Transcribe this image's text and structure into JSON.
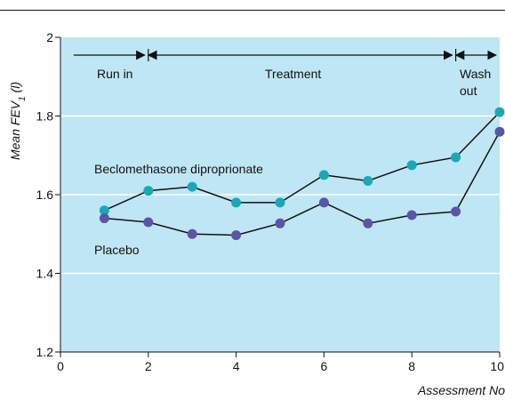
{
  "chart_data": {
    "type": "line",
    "xlabel": "Assessment No",
    "ylabel_main": "Mean FEV",
    "ylabel_sub": "1",
    "ylabel_unit": "(l)",
    "xlim": [
      0,
      10
    ],
    "ylim": [
      1.2,
      2.0
    ],
    "x_ticks": [
      "0",
      "2",
      "4",
      "6",
      "8",
      "10"
    ],
    "y_ticks": [
      "1.2",
      "1.4",
      "1.6",
      "1.8",
      "2"
    ],
    "grid": "horizontal",
    "background_color": "#bfe6f4",
    "series": [
      {
        "name": "Beclomethasone diproprionate",
        "color": "#1aa8b8",
        "x": [
          1,
          2,
          3,
          4,
          5,
          6,
          7,
          8,
          9,
          10
        ],
        "values": [
          1.56,
          1.61,
          1.62,
          1.58,
          1.58,
          1.65,
          1.635,
          1.675,
          1.695,
          1.81
        ]
      },
      {
        "name": "Placebo",
        "color": "#5a55a8",
        "x": [
          1,
          2,
          3,
          4,
          5,
          6,
          7,
          8,
          9,
          10
        ],
        "values": [
          1.54,
          1.53,
          1.5,
          1.497,
          1.527,
          1.58,
          1.527,
          1.548,
          1.557,
          1.76
        ]
      }
    ],
    "phases": [
      {
        "label": "Run in",
        "x_start": 0.3,
        "x_end": 2
      },
      {
        "label": "Treatment",
        "x_start": 2,
        "x_end": 9
      },
      {
        "label_line1": "Wash",
        "label_line2": "out",
        "x_start": 9,
        "x_end": 10
      }
    ]
  }
}
